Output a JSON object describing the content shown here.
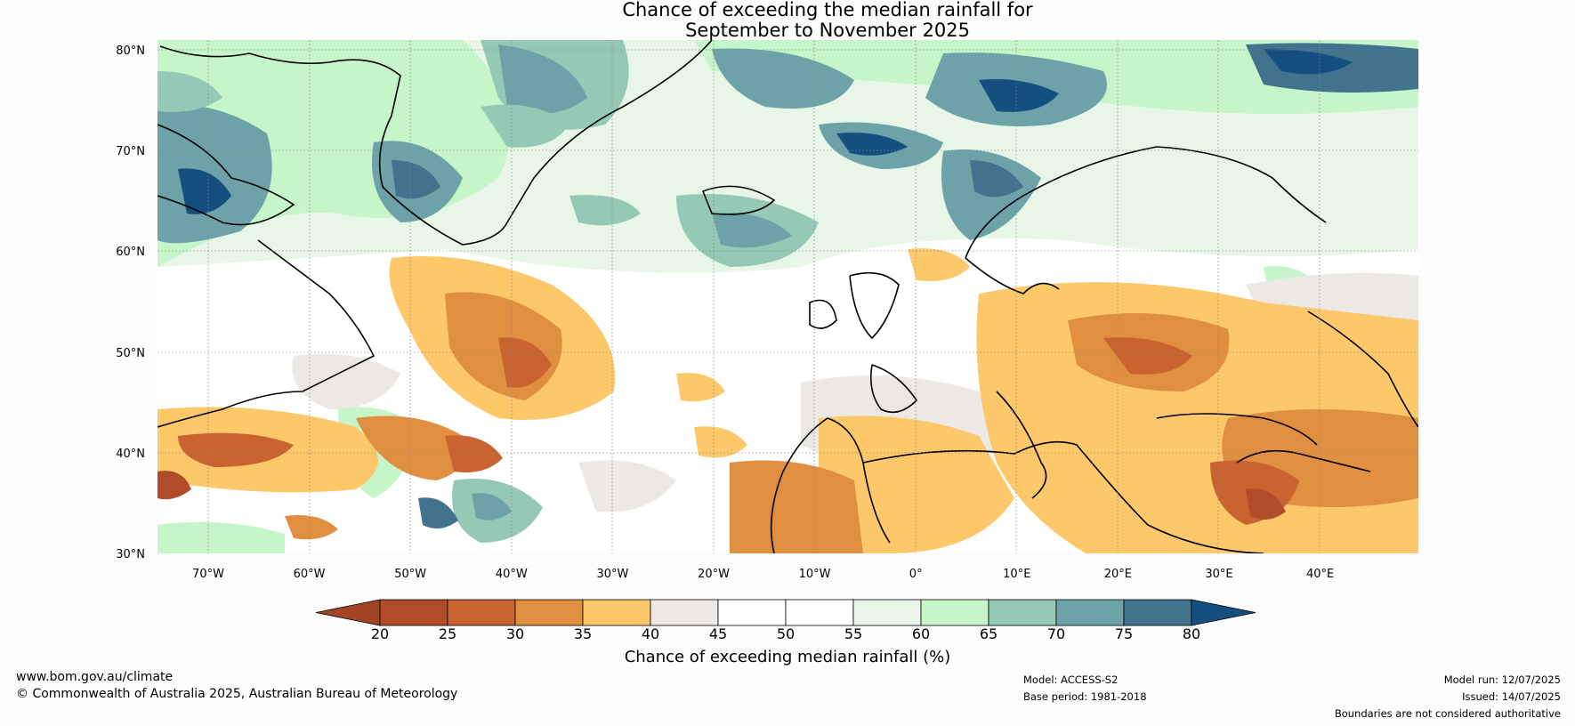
{
  "map": {
    "title_line1": "Chance of exceeding the median rainfall for",
    "title_line2": "September to November 2025",
    "lat_labels": [
      "80°N",
      "70°N",
      "60°N",
      "50°N",
      "40°N",
      "30°N"
    ],
    "lon_labels": [
      "70°W",
      "60°W",
      "50°W",
      "40°W",
      "30°W",
      "20°W",
      "10°W",
      "0°",
      "10°E",
      "20°E",
      "30°E",
      "40°E"
    ],
    "colorbar": {
      "ticks": [
        "20",
        "25",
        "30",
        "35",
        "40",
        "45",
        "50",
        "55",
        "60",
        "65",
        "70",
        "75",
        "80"
      ],
      "bin_colors": [
        "#a14424",
        "#b04c2a",
        "#c9632f",
        "#e08e40",
        "#fcc86a",
        "#ece8e4",
        "#ffffff",
        "#ffffff",
        "#e7f6e7",
        "#c5f5c8",
        "#95c9b5",
        "#6ca2a8",
        "#41728e",
        "#144f80"
      ],
      "label": "Chance of exceeding median rainfall (%)"
    }
  },
  "footer": {
    "website": "www.bom.gov.au/climate",
    "copyright": "© Commonwealth of Australia 2025, Australian Bureau of Meteorology",
    "model": "Model: ACCESS-S2",
    "base_period": "Base period: 1981-2018",
    "model_run": "Model run: 12/07/2025",
    "issued": "Issued: 14/07/2025",
    "disclaimer": "Boundaries are not considered authoritative"
  }
}
